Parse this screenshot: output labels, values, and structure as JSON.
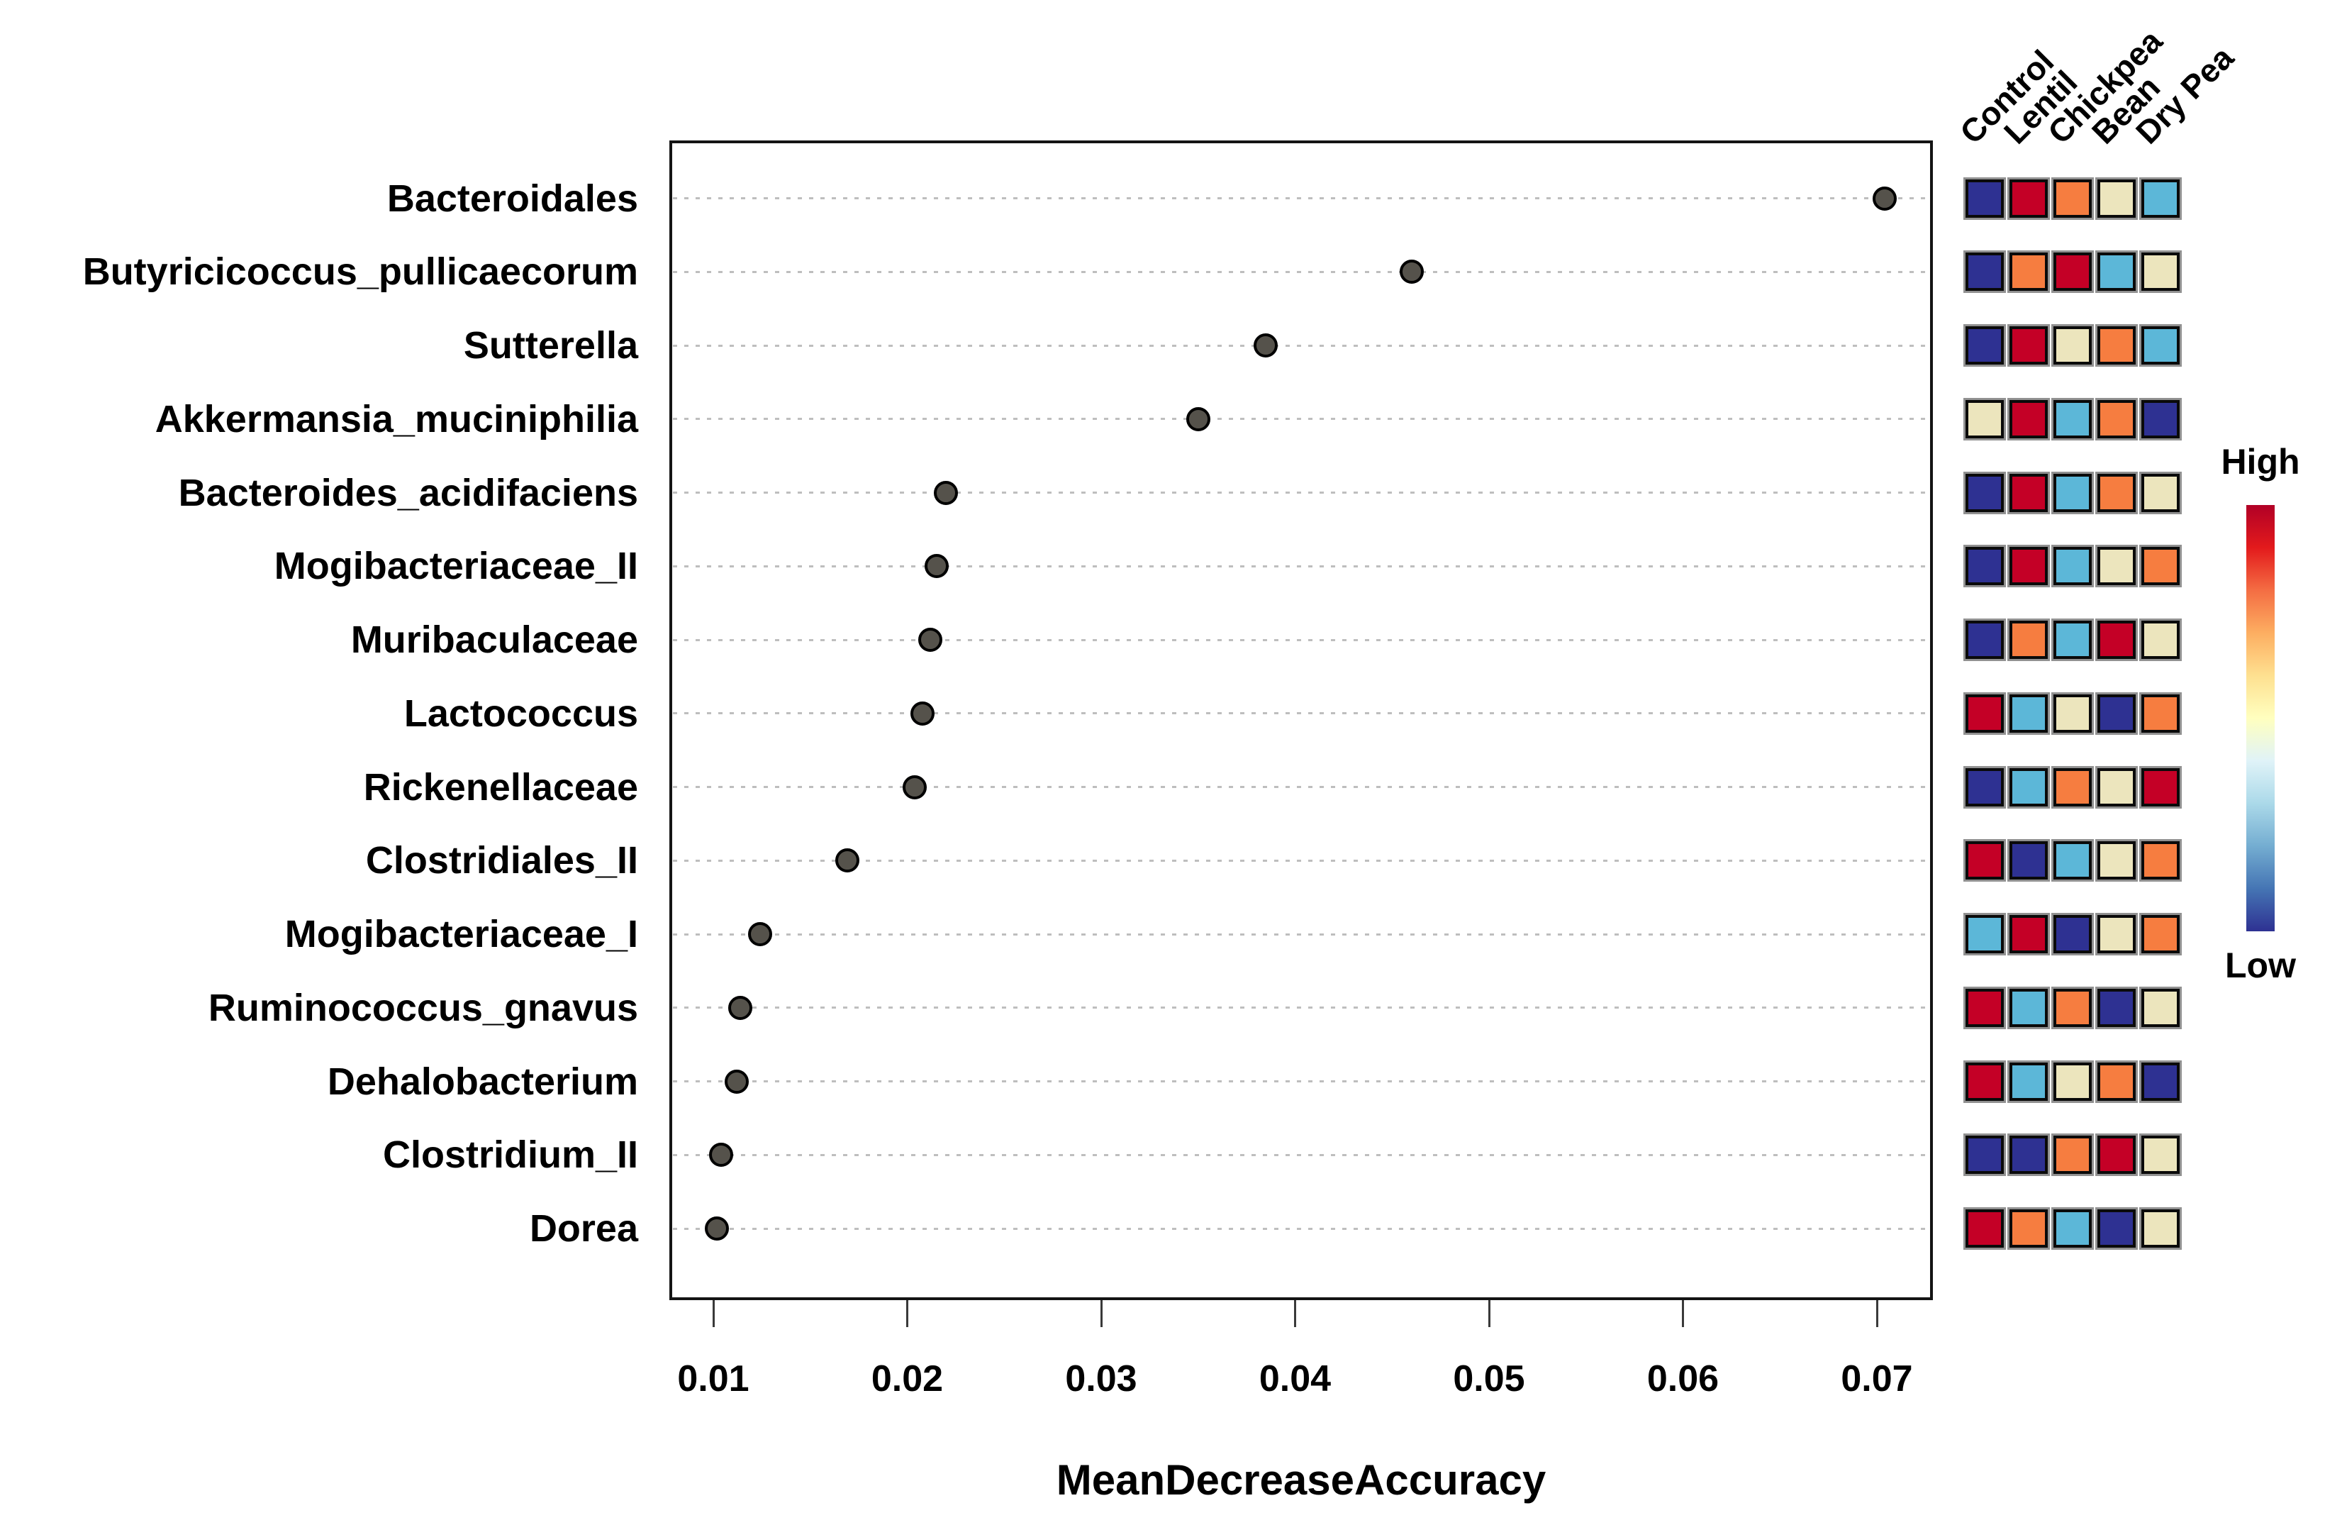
{
  "figure": {
    "xlabel": "MeanDecreaseAccuracy",
    "legend_high": "High",
    "legend_low": "Low"
  },
  "chart_data": {
    "type": "scatter",
    "title": "",
    "xlabel": "MeanDecreaseAccuracy",
    "ylabel": "",
    "xlim": [
      0.0077,
      0.0729
    ],
    "grid": "horizontal-dotted",
    "xticks": [
      "0.01",
      "0.02",
      "0.03",
      "0.04",
      "0.05",
      "0.06",
      "0.07"
    ],
    "xtick_values": [
      0.01,
      0.02,
      0.03,
      0.04,
      0.05,
      0.06,
      0.07
    ],
    "categories": [
      "Bacteroidales",
      "Butyricicoccus_pullicaecorum",
      "Sutterella",
      "Akkermansia_muciniphilia",
      "Bacteroides_acidifaciens",
      "Mogibacteriaceae_II",
      "Muribaculaceae",
      "Lactococcus",
      "Rickenellaceae",
      "Clostridiales_II",
      "Mogibacteriaceae_I",
      "Ruminococcus_gnavus",
      "Dehalobacterium",
      "Clostridium_II",
      "Dorea"
    ],
    "values": [
      0.0704,
      0.046,
      0.0385,
      0.035,
      0.022,
      0.0215,
      0.0212,
      0.0208,
      0.0204,
      0.0169,
      0.0124,
      0.0114,
      0.0112,
      0.0104,
      0.0102
    ],
    "point_color": "#55524B",
    "point_border_color": "#000000",
    "grid_color": "#BEBEBE",
    "heatmap": {
      "type": "heatmap",
      "columns": [
        "Control",
        "Lentil",
        "Chickpea",
        "Bean",
        "Dry Pea"
      ],
      "cells": [
        [
          "navy",
          "red",
          "orange",
          "cream",
          "sky"
        ],
        [
          "navy",
          "orange",
          "red",
          "sky",
          "cream"
        ],
        [
          "navy",
          "red",
          "cream",
          "orange",
          "sky"
        ],
        [
          "cream",
          "red",
          "sky",
          "orange",
          "navy"
        ],
        [
          "navy",
          "red",
          "sky",
          "orange",
          "cream"
        ],
        [
          "navy",
          "red",
          "sky",
          "cream",
          "orange"
        ],
        [
          "navy",
          "orange",
          "sky",
          "red",
          "cream"
        ],
        [
          "red",
          "sky",
          "cream",
          "navy",
          "orange"
        ],
        [
          "navy",
          "sky",
          "orange",
          "cream",
          "red"
        ],
        [
          "red",
          "navy",
          "sky",
          "cream",
          "orange"
        ],
        [
          "sky",
          "red",
          "navy",
          "cream",
          "orange"
        ],
        [
          "red",
          "sky",
          "orange",
          "navy",
          "cream"
        ],
        [
          "red",
          "sky",
          "cream",
          "orange",
          "navy"
        ],
        [
          "navy",
          "navy",
          "orange",
          "red",
          "cream"
        ],
        [
          "red",
          "orange",
          "sky",
          "navy",
          "cream"
        ]
      ],
      "palette": {
        "navy": "#2E3192",
        "red": "#C40026",
        "orange": "#F67D40",
        "cream": "#ECE5BD",
        "sky": "#5CB7D8"
      },
      "colorbar": {
        "high_label": "High",
        "low_label": "Low",
        "gradient_top_to_bottom": [
          "#B10026",
          "#E31A1C",
          "#F46D43",
          "#FDAE61",
          "#FEE090",
          "#FFFFBF",
          "#E0F3F8",
          "#ABD9E9",
          "#74ADD1",
          "#4575B4",
          "#2E3192"
        ]
      }
    }
  }
}
